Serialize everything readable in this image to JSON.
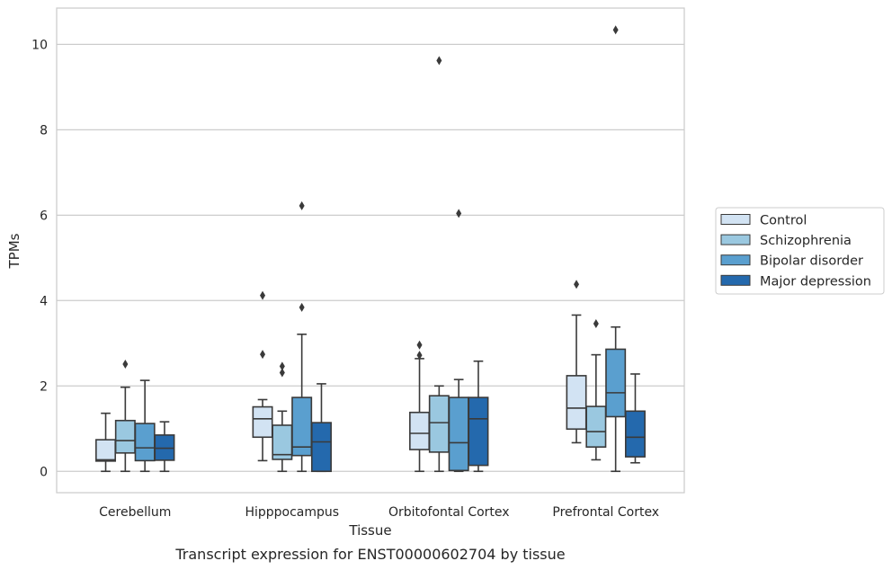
{
  "chart_data": {
    "type": "box",
    "caption": "Transcript expression for ENST00000602704 by tissue",
    "xlabel": "Tissue",
    "ylabel": "TPMs",
    "ylim": [
      -0.5,
      10.85
    ],
    "yticks": [
      0,
      2,
      4,
      6,
      8,
      10
    ],
    "ytick_labels": [
      "0",
      "2",
      "4",
      "6",
      "8",
      "10"
    ],
    "grid": "horizontal",
    "legend_position": "right",
    "categories": [
      "Cerebellum",
      "Hipppocampus",
      "Orbitofontal Cortex",
      "Prefrontal Cortex"
    ],
    "series": [
      {
        "name": "Control",
        "color": "#d2e3f3",
        "boxes": [
          {
            "whislo": 0.0,
            "q1": 0.24,
            "med": 0.27,
            "q3": 0.74,
            "whishi": 1.36,
            "fliers": []
          },
          {
            "whislo": 0.25,
            "q1": 0.8,
            "med": 1.23,
            "q3": 1.51,
            "whishi": 1.68,
            "fliers": [
              4.12,
              2.74
            ]
          },
          {
            "whislo": 0.0,
            "q1": 0.51,
            "med": 0.89,
            "q3": 1.38,
            "whishi": 2.64,
            "fliers": [
              2.96,
              2.72
            ]
          },
          {
            "whislo": 0.67,
            "q1": 0.99,
            "med": 1.48,
            "q3": 2.24,
            "whishi": 3.66,
            "fliers": [
              4.38
            ]
          }
        ]
      },
      {
        "name": "Schizophrenia",
        "color": "#9ac8e0",
        "boxes": [
          {
            "whislo": 0.0,
            "q1": 0.43,
            "med": 0.72,
            "q3": 1.19,
            "whishi": 1.97,
            "fliers": [
              2.51
            ]
          },
          {
            "whislo": 0.0,
            "q1": 0.28,
            "med": 0.39,
            "q3": 1.08,
            "whishi": 1.41,
            "fliers": [
              2.46,
              2.31
            ]
          },
          {
            "whislo": 0.0,
            "q1": 0.45,
            "med": 1.14,
            "q3": 1.77,
            "whishi": 2.0,
            "fliers": [
              9.62
            ]
          },
          {
            "whislo": 0.27,
            "q1": 0.57,
            "med": 0.93,
            "q3": 1.52,
            "whishi": 2.73,
            "fliers": [
              3.46
            ]
          }
        ]
      },
      {
        "name": "Bipolar disorder",
        "color": "#5a9fcf",
        "boxes": [
          {
            "whislo": 0.0,
            "q1": 0.25,
            "med": 0.55,
            "q3": 1.12,
            "whishi": 2.13,
            "fliers": []
          },
          {
            "whislo": 0.0,
            "q1": 0.37,
            "med": 0.57,
            "q3": 1.73,
            "whishi": 3.21,
            "fliers": [
              6.22,
              3.84
            ]
          },
          {
            "whislo": 0.0,
            "q1": 0.02,
            "med": 0.67,
            "q3": 1.73,
            "whishi": 2.15,
            "fliers": [
              6.04
            ]
          },
          {
            "whislo": 0.0,
            "q1": 1.28,
            "med": 1.84,
            "q3": 2.86,
            "whishi": 3.38,
            "fliers": [
              10.34
            ]
          }
        ]
      },
      {
        "name": "Major depression",
        "color": "#2469ad",
        "boxes": [
          {
            "whislo": 0.0,
            "q1": 0.26,
            "med": 0.54,
            "q3": 0.85,
            "whishi": 1.16,
            "fliers": []
          },
          {
            "whislo": 0.0,
            "q1": 0.0,
            "med": 0.69,
            "q3": 1.14,
            "whishi": 2.05,
            "fliers": []
          },
          {
            "whislo": 0.0,
            "q1": 0.14,
            "med": 1.23,
            "q3": 1.73,
            "whishi": 2.58,
            "fliers": []
          },
          {
            "whislo": 0.2,
            "q1": 0.34,
            "med": 0.8,
            "q3": 1.41,
            "whishi": 2.28,
            "fliers": []
          }
        ]
      }
    ]
  }
}
